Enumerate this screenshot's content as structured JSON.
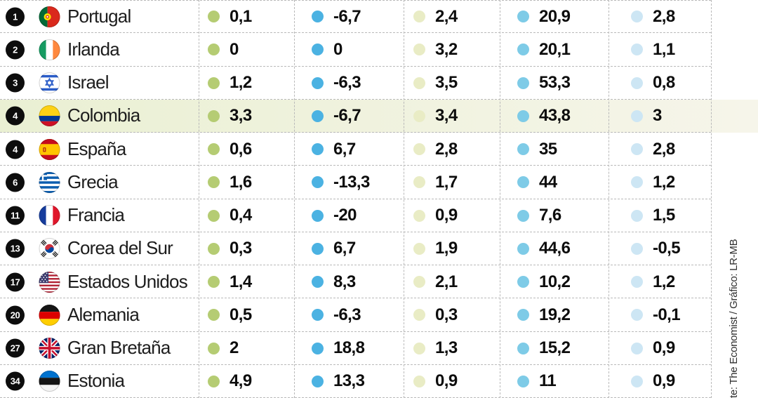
{
  "source_note": "te: The Economist / Gráfico: LR-MB",
  "colors": {
    "dots": [
      "#b5cc73",
      "#4bb2e2",
      "#e9ecc5",
      "#7ecbe7",
      "#cde6f4"
    ],
    "rank_badge": "#0d0d0d",
    "highlight_left": "#eaf0d3",
    "highlight_right": "#f6f5ea",
    "separator": "#b9b9b9"
  },
  "table": {
    "rows": [
      {
        "rank": "1",
        "country": "Portugal",
        "flag": "portugal",
        "highlight": false,
        "values": [
          "0,1",
          "-6,7",
          "2,4",
          "20,9",
          "2,8"
        ]
      },
      {
        "rank": "2",
        "country": "Irlanda",
        "flag": "ireland",
        "highlight": false,
        "values": [
          "0",
          "0",
          "3,2",
          "20,1",
          "1,1"
        ]
      },
      {
        "rank": "3",
        "country": "Israel",
        "flag": "israel",
        "highlight": false,
        "values": [
          "1,2",
          "-6,3",
          "3,5",
          "53,3",
          "0,8"
        ]
      },
      {
        "rank": "4",
        "country": "Colombia",
        "flag": "colombia",
        "highlight": true,
        "values": [
          "3,3",
          "-6,7",
          "3,4",
          "43,8",
          "3"
        ]
      },
      {
        "rank": "4",
        "country": "España",
        "flag": "spain",
        "highlight": false,
        "values": [
          "0,6",
          "6,7",
          "2,8",
          "35",
          "2,8"
        ]
      },
      {
        "rank": "6",
        "country": "Grecia",
        "flag": "greece",
        "highlight": false,
        "values": [
          "1,6",
          "-13,3",
          "1,7",
          "44",
          "1,2"
        ]
      },
      {
        "rank": "11",
        "country": "Francia",
        "flag": "france",
        "highlight": false,
        "values": [
          "0,4",
          "-20",
          "0,9",
          "7,6",
          "1,5"
        ]
      },
      {
        "rank": "13",
        "country": "Corea del Sur",
        "flag": "south-korea",
        "highlight": false,
        "values": [
          "0,3",
          "6,7",
          "1,9",
          "44,6",
          "-0,5"
        ]
      },
      {
        "rank": "17",
        "country": "Estados Unidos",
        "flag": "usa",
        "highlight": false,
        "values": [
          "1,4",
          "8,3",
          "2,1",
          "10,2",
          "1,2"
        ]
      },
      {
        "rank": "20",
        "country": "Alemania",
        "flag": "germany",
        "highlight": false,
        "values": [
          "0,5",
          "-6,3",
          "0,3",
          "19,2",
          "-0,1"
        ]
      },
      {
        "rank": "27",
        "country": "Gran Bretaña",
        "flag": "uk",
        "highlight": false,
        "values": [
          "2",
          "18,8",
          "1,3",
          "15,2",
          "0,9"
        ]
      },
      {
        "rank": "34",
        "country": "Estonia",
        "flag": "estonia",
        "highlight": false,
        "values": [
          "4,9",
          "13,3",
          "0,9",
          "11",
          "0,9"
        ]
      }
    ]
  },
  "chart_data": {
    "type": "table",
    "column_headers_visible": false,
    "columns": [
      "rank",
      "country",
      "indicator_green",
      "indicator_blue",
      "indicator_pale_green",
      "indicator_medium_blue",
      "indicator_pale_blue"
    ],
    "dot_colors": [
      "#b5cc73",
      "#4bb2e2",
      "#e9ecc5",
      "#7ecbe7",
      "#cde6f4"
    ],
    "highlighted_row": "Colombia",
    "rows": [
      [
        1,
        "Portugal",
        0.1,
        -6.7,
        2.4,
        20.9,
        2.8
      ],
      [
        2,
        "Irlanda",
        0,
        0,
        3.2,
        20.1,
        1.1
      ],
      [
        3,
        "Israel",
        1.2,
        -6.3,
        3.5,
        53.3,
        0.8
      ],
      [
        4,
        "Colombia",
        3.3,
        -6.7,
        3.4,
        43.8,
        3
      ],
      [
        4,
        "España",
        0.6,
        6.7,
        2.8,
        35,
        2.8
      ],
      [
        6,
        "Grecia",
        1.6,
        -13.3,
        1.7,
        44,
        1.2
      ],
      [
        11,
        "Francia",
        0.4,
        -20,
        0.9,
        7.6,
        1.5
      ],
      [
        13,
        "Corea del Sur",
        0.3,
        6.7,
        1.9,
        44.6,
        -0.5
      ],
      [
        17,
        "Estados Unidos",
        1.4,
        8.3,
        2.1,
        10.2,
        1.2
      ],
      [
        20,
        "Alemania",
        0.5,
        -6.3,
        0.3,
        19.2,
        -0.1
      ],
      [
        27,
        "Gran Bretaña",
        2,
        18.8,
        1.3,
        15.2,
        0.9
      ],
      [
        34,
        "Estonia",
        4.9,
        13.3,
        0.9,
        11,
        0.9
      ]
    ],
    "source": "te: The Economist / Gráfico: LR-MB"
  }
}
